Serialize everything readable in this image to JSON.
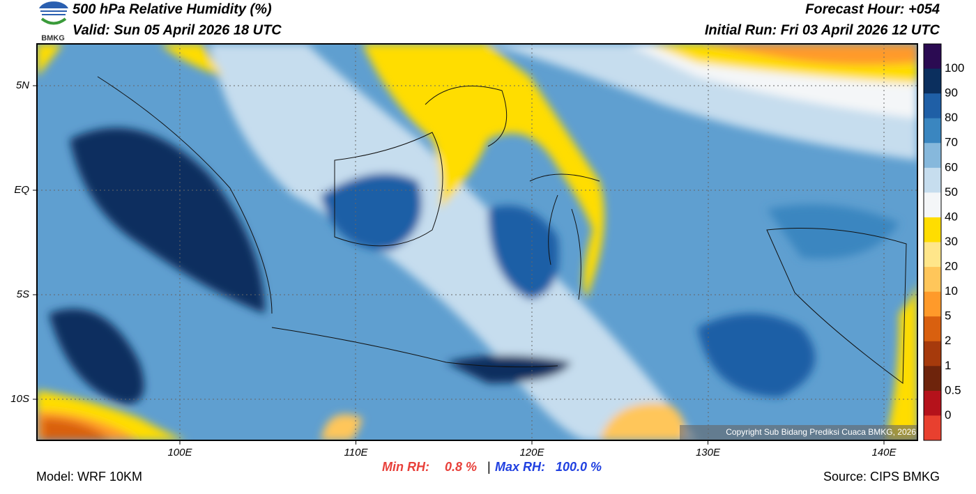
{
  "header": {
    "logo": "BMKG",
    "title": "500 hPa Relative Humidity (%)",
    "valid": "Valid: Sun 05 April 2026 18 UTC",
    "forecast_hour": "Forecast Hour: +054",
    "initial_run": "Initial Run: Fri 03 April 2026 12 UTC"
  },
  "map": {
    "lat_labels": [
      "5N",
      "EQ",
      "5S",
      "10S"
    ],
    "lon_labels": [
      "100E",
      "110E",
      "120E",
      "130E",
      "140E"
    ],
    "copyright": "Copyright Sub Bidang Prediksi Cuaca BMKG, 2026"
  },
  "colorbar": {
    "labels": [
      "100",
      "90",
      "80",
      "70",
      "60",
      "50",
      "40",
      "30",
      "20",
      "10",
      "5",
      "2",
      "1",
      "0.5",
      "0"
    ],
    "colors": [
      "#2b0b52",
      "#0b2f5e",
      "#1f5fa6",
      "#3a86c0",
      "#86b8dc",
      "#c6ddee",
      "#f4f6f8",
      "#ffdd00",
      "#ffe68a",
      "#ffc65a",
      "#ff9a2a",
      "#d9600f",
      "#a63a0c",
      "#6e240c",
      "#b5121b",
      "#e8402f"
    ]
  },
  "footer": {
    "model": "Model: WRF 10KM",
    "min_label": "Min RH:",
    "min_value": "0.8 %",
    "separator": "|",
    "max_label": "Max RH:",
    "max_value": "100.0 %",
    "source": "Source: CIPS BMKG"
  }
}
